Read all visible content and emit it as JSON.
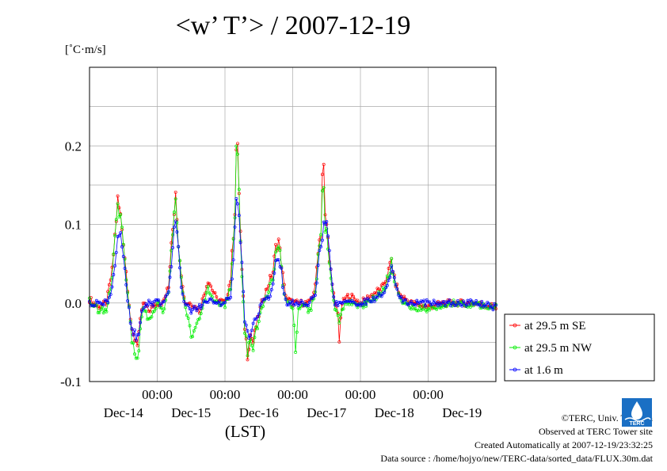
{
  "title": "<w’ T’> / 2007-12-19",
  "footer": {
    "copyright": "©TERC, Univ. Tsukuba",
    "observed": "Observed at TERC Tower site",
    "created": "Created Automatically at 2007-12-19/23:32:25",
    "source": "Data source : /home/hojyo/new/TERC-data/sorted_data/FLUX.30m.dat",
    "logo_text": "TERC"
  },
  "chart_data": {
    "type": "line",
    "ylabel": "[˚C·m/s]",
    "xlabel": "(LST)",
    "ylim": [
      -0.1,
      0.3
    ],
    "yticks": [
      -0.1,
      0.0,
      0.1,
      0.2
    ],
    "ytick_labels": [
      "-0.1",
      "0.0",
      "0.1",
      "0.2"
    ],
    "xlim_hours": [
      0,
      144
    ],
    "midnight_label": "00:00",
    "day_labels": [
      "Dec-14",
      "Dec-15",
      "Dec-16",
      "Dec-17",
      "Dec-18",
      "Dec-19"
    ],
    "grid": true,
    "legend_position": "right",
    "series": [
      {
        "name": "at 29.5 m SE",
        "color": "#ff0000",
        "keypoints": [
          [
            0,
            0.005
          ],
          [
            3,
            -0.005
          ],
          [
            6,
            0.0
          ],
          [
            8,
            0.04
          ],
          [
            9,
            0.085
          ],
          [
            10,
            0.13
          ],
          [
            11,
            0.11
          ],
          [
            12,
            0.08
          ],
          [
            13,
            0.04
          ],
          [
            14,
            0.0
          ],
          [
            15,
            -0.04
          ],
          [
            17,
            -0.05
          ],
          [
            19,
            0.0
          ],
          [
            21,
            -0.01
          ],
          [
            24,
            0.0
          ],
          [
            26,
            0.0
          ],
          [
            28,
            0.02
          ],
          [
            29,
            0.08
          ],
          [
            30,
            0.12
          ],
          [
            30.5,
            0.152
          ],
          [
            31,
            0.1
          ],
          [
            32,
            0.06
          ],
          [
            33,
            0.02
          ],
          [
            34,
            0.0
          ],
          [
            36,
            0.0
          ],
          [
            39,
            -0.01
          ],
          [
            42,
            0.03
          ],
          [
            45,
            0.005
          ],
          [
            48,
            0.0
          ],
          [
            50,
            0.03
          ],
          [
            51,
            0.09
          ],
          [
            51.5,
            0.12
          ],
          [
            52,
            0.195
          ],
          [
            52.6,
            0.19
          ],
          [
            53.2,
            0.12
          ],
          [
            54,
            0.04
          ],
          [
            55,
            -0.03
          ],
          [
            56,
            -0.065
          ],
          [
            57,
            -0.04
          ],
          [
            58,
            -0.05
          ],
          [
            59,
            -0.03
          ],
          [
            61,
            0.0
          ],
          [
            63,
            0.02
          ],
          [
            65,
            0.04
          ],
          [
            66,
            0.07
          ],
          [
            67,
            0.08
          ],
          [
            68,
            0.05
          ],
          [
            69,
            0.02
          ],
          [
            70,
            0.005
          ],
          [
            72,
            0.0
          ],
          [
            74,
            0.0
          ],
          [
            76,
            0.0
          ],
          [
            78,
            0.0
          ],
          [
            80,
            0.02
          ],
          [
            81,
            0.07
          ],
          [
            82,
            0.09
          ],
          [
            82.8,
            0.21
          ],
          [
            83.3,
            0.11
          ],
          [
            84,
            0.1
          ],
          [
            85,
            0.06
          ],
          [
            86,
            0.02
          ],
          [
            87,
            0.0
          ],
          [
            88,
            -0.01
          ],
          [
            88.5,
            -0.048
          ],
          [
            89.5,
            0.0
          ],
          [
            92,
            0.01
          ],
          [
            96,
            0.0
          ],
          [
            100,
            0.01
          ],
          [
            104,
            0.02
          ],
          [
            106,
            0.04
          ],
          [
            107,
            0.055
          ],
          [
            108,
            0.03
          ],
          [
            110,
            0.01
          ],
          [
            114,
            0.0
          ],
          [
            120,
            -0.005
          ],
          [
            123,
            -0.002
          ],
          [
            126,
            0.0
          ],
          [
            130,
            0.0
          ],
          [
            136,
            0.0
          ],
          [
            144,
            -0.005
          ]
        ]
      },
      {
        "name": "at 29.5 m NW",
        "color": "#00ee00",
        "keypoints": [
          [
            0,
            0.003
          ],
          [
            3,
            -0.008
          ],
          [
            6,
            -0.01
          ],
          [
            8,
            0.03
          ],
          [
            9,
            0.08
          ],
          [
            10,
            0.12
          ],
          [
            11,
            0.12
          ],
          [
            12,
            0.075
          ],
          [
            13,
            0.03
          ],
          [
            14,
            -0.005
          ],
          [
            15,
            -0.05
          ],
          [
            17,
            -0.07
          ],
          [
            19,
            -0.005
          ],
          [
            21,
            -0.02
          ],
          [
            24,
            0.0
          ],
          [
            26,
            -0.01
          ],
          [
            28,
            0.015
          ],
          [
            29,
            0.07
          ],
          [
            30,
            0.11
          ],
          [
            30.5,
            0.14
          ],
          [
            31,
            0.095
          ],
          [
            32,
            0.05
          ],
          [
            33,
            0.01
          ],
          [
            34,
            -0.005
          ],
          [
            36,
            -0.04
          ],
          [
            39,
            -0.02
          ],
          [
            42,
            0.02
          ],
          [
            45,
            0.0
          ],
          [
            48,
            -0.005
          ],
          [
            50,
            0.02
          ],
          [
            51,
            0.08
          ],
          [
            51.5,
            0.11
          ],
          [
            52,
            0.195
          ],
          [
            52.6,
            0.185
          ],
          [
            53.2,
            0.11
          ],
          [
            54,
            0.03
          ],
          [
            55,
            -0.035
          ],
          [
            56,
            -0.06
          ],
          [
            57,
            -0.045
          ],
          [
            58,
            -0.055
          ],
          [
            59,
            -0.035
          ],
          [
            61,
            -0.005
          ],
          [
            63,
            0.01
          ],
          [
            65,
            0.03
          ],
          [
            66,
            0.06
          ],
          [
            67,
            0.075
          ],
          [
            68,
            0.045
          ],
          [
            69,
            0.01
          ],
          [
            70,
            0.0
          ],
          [
            72,
            -0.005
          ],
          [
            73,
            -0.06
          ],
          [
            74,
            -0.005
          ],
          [
            76,
            0.0
          ],
          [
            78,
            -0.01
          ],
          [
            80,
            0.01
          ],
          [
            81,
            0.06
          ],
          [
            82,
            0.08
          ],
          [
            82.8,
            0.175
          ],
          [
            83.3,
            0.1
          ],
          [
            84,
            0.09
          ],
          [
            85,
            0.05
          ],
          [
            86,
            0.015
          ],
          [
            87,
            -0.005
          ],
          [
            88,
            -0.02
          ],
          [
            88.5,
            -0.03
          ],
          [
            89.5,
            -0.005
          ],
          [
            92,
            0.0
          ],
          [
            96,
            -0.005
          ],
          [
            100,
            0.005
          ],
          [
            104,
            0.015
          ],
          [
            106,
            0.035
          ],
          [
            107,
            0.05
          ],
          [
            108,
            0.025
          ],
          [
            110,
            0.005
          ],
          [
            114,
            -0.005
          ],
          [
            120,
            -0.008
          ],
          [
            123,
            -0.004
          ],
          [
            126,
            -0.002
          ],
          [
            130,
            0.0
          ],
          [
            136,
            -0.002
          ],
          [
            144,
            -0.006
          ]
        ]
      },
      {
        "name": "at 1.6 m",
        "color": "#0000ff",
        "keypoints": [
          [
            0,
            0.0
          ],
          [
            3,
            0.0
          ],
          [
            6,
            0.0
          ],
          [
            8,
            0.02
          ],
          [
            9,
            0.05
          ],
          [
            10,
            0.08
          ],
          [
            11,
            0.095
          ],
          [
            12,
            0.06
          ],
          [
            13,
            0.02
          ],
          [
            14,
            -0.01
          ],
          [
            15,
            -0.035
          ],
          [
            17,
            -0.045
          ],
          [
            19,
            -0.005
          ],
          [
            21,
            0.0
          ],
          [
            24,
            0.0
          ],
          [
            26,
            0.0
          ],
          [
            28,
            0.01
          ],
          [
            29,
            0.05
          ],
          [
            30,
            0.1
          ],
          [
            30.5,
            0.11
          ],
          [
            31,
            0.09
          ],
          [
            32,
            0.04
          ],
          [
            33,
            0.01
          ],
          [
            34,
            0.0
          ],
          [
            36,
            -0.01
          ],
          [
            39,
            -0.005
          ],
          [
            42,
            0.005
          ],
          [
            45,
            0.0
          ],
          [
            48,
            0.0
          ],
          [
            50,
            0.01
          ],
          [
            51,
            0.06
          ],
          [
            51.5,
            0.1
          ],
          [
            52,
            0.135
          ],
          [
            52.6,
            0.13
          ],
          [
            53.2,
            0.1
          ],
          [
            54,
            0.05
          ],
          [
            55,
            -0.02
          ],
          [
            56,
            -0.04
          ],
          [
            57,
            -0.04
          ],
          [
            58,
            -0.03
          ],
          [
            59,
            -0.02
          ],
          [
            61,
            0.0
          ],
          [
            63,
            0.005
          ],
          [
            65,
            0.02
          ],
          [
            66,
            0.05
          ],
          [
            67,
            0.06
          ],
          [
            68,
            0.04
          ],
          [
            69,
            0.01
          ],
          [
            70,
            0.0
          ],
          [
            72,
            0.0
          ],
          [
            74,
            0.0
          ],
          [
            76,
            0.0
          ],
          [
            78,
            0.0
          ],
          [
            80,
            0.01
          ],
          [
            81,
            0.05
          ],
          [
            82,
            0.07
          ],
          [
            82.8,
            0.09
          ],
          [
            83.3,
            0.1
          ],
          [
            84,
            0.105
          ],
          [
            85,
            0.07
          ],
          [
            86,
            0.02
          ],
          [
            87,
            0.0
          ],
          [
            88,
            0.0
          ],
          [
            88.5,
            0.0
          ],
          [
            89.5,
            0.0
          ],
          [
            92,
            0.0
          ],
          [
            96,
            0.0
          ],
          [
            100,
            0.005
          ],
          [
            104,
            0.01
          ],
          [
            106,
            0.03
          ],
          [
            107,
            0.048
          ],
          [
            108,
            0.03
          ],
          [
            110,
            0.005
          ],
          [
            114,
            0.0
          ],
          [
            120,
            0.0
          ],
          [
            123,
            0.0
          ],
          [
            126,
            0.0
          ],
          [
            130,
            0.0
          ],
          [
            136,
            0.0
          ],
          [
            144,
            -0.005
          ]
        ]
      }
    ]
  }
}
